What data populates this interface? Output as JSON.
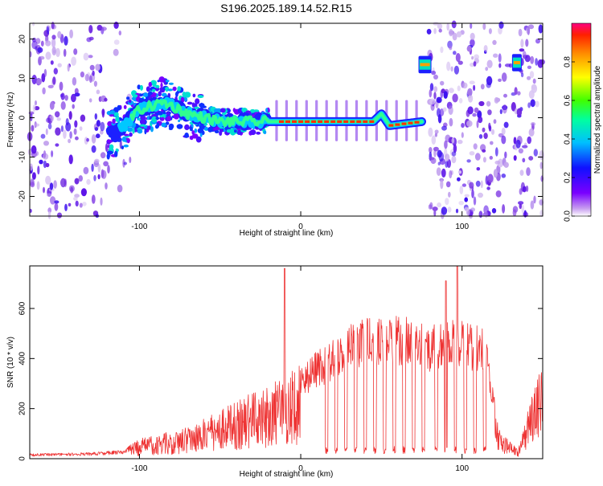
{
  "title": "S196.2025.189.14.52.R15",
  "chart_data": [
    {
      "type": "heatmap",
      "xlabel": "Height of straight line (km)",
      "ylabel": "Frequency (Hz)",
      "xlim": [
        -168,
        150
      ],
      "ylim": [
        -25,
        24
      ],
      "xticks": [
        -100,
        0,
        100
      ],
      "yticks": [
        -20,
        -10,
        0,
        10,
        20
      ],
      "colorbar": {
        "label": "Normalized spectral amplitude",
        "range": [
          0,
          1
        ],
        "ticks": [
          "0.0",
          "0.2",
          "0.4",
          "0.6",
          "0.8"
        ]
      },
      "signal_track": [
        {
          "x": -115,
          "y": -4
        },
        {
          "x": -100,
          "y": 2
        },
        {
          "x": -85,
          "y": 4
        },
        {
          "x": -70,
          "y": 1
        },
        {
          "x": -50,
          "y": -1
        },
        {
          "x": -30,
          "y": -1
        },
        {
          "x": -10,
          "y": -1
        },
        {
          "x": 0,
          "y": -1
        },
        {
          "x": 45,
          "y": -1
        },
        {
          "x": 50,
          "y": 1
        },
        {
          "x": 55,
          "y": -2
        },
        {
          "x": 75,
          "y": -1
        }
      ],
      "tones": [
        {
          "x_from": 73,
          "x_to": 81,
          "freq": 13.5
        },
        {
          "x_from": 131,
          "x_to": 137,
          "freq": 14
        }
      ]
    },
    {
      "type": "line",
      "xlabel": "Height of straight line (km)",
      "ylabel": "SNR (10 * v/v)",
      "xlim": [
        -168,
        150
      ],
      "ylim": [
        0,
        770
      ],
      "xticks": [
        -100,
        0,
        100
      ],
      "yticks": [
        0,
        200,
        400,
        600
      ],
      "color": "#ee3333",
      "envelope": [
        {
          "x": -168,
          "y": 20
        },
        {
          "x": -130,
          "y": 25
        },
        {
          "x": -110,
          "y": 35
        },
        {
          "x": -100,
          "y": 80
        },
        {
          "x": -80,
          "y": 110
        },
        {
          "x": -60,
          "y": 160
        },
        {
          "x": -40,
          "y": 230
        },
        {
          "x": -20,
          "y": 300
        },
        {
          "x": -10,
          "y": 330
        },
        {
          "x": 0,
          "y": 380
        },
        {
          "x": 10,
          "y": 430
        },
        {
          "x": 20,
          "y": 480
        },
        {
          "x": 30,
          "y": 540
        },
        {
          "x": 40,
          "y": 560
        },
        {
          "x": 50,
          "y": 565
        },
        {
          "x": 60,
          "y": 570
        },
        {
          "x": 70,
          "y": 570
        },
        {
          "x": 80,
          "y": 530
        },
        {
          "x": 90,
          "y": 560
        },
        {
          "x": 100,
          "y": 550
        },
        {
          "x": 115,
          "y": 520
        },
        {
          "x": 122,
          "y": 150
        },
        {
          "x": 128,
          "y": 80
        },
        {
          "x": 135,
          "y": 40
        },
        {
          "x": 143,
          "y": 250
        },
        {
          "x": 150,
          "y": 380
        }
      ],
      "spikes": [
        {
          "x": -10,
          "y": 760
        },
        {
          "x": 97,
          "y": 770
        },
        {
          "x": 90,
          "y": 710
        }
      ],
      "dropouts": [
        16,
        22,
        28,
        34,
        40,
        46,
        52,
        58,
        64,
        70,
        76,
        84,
        90,
        96,
        102,
        108,
        114
      ]
    }
  ]
}
